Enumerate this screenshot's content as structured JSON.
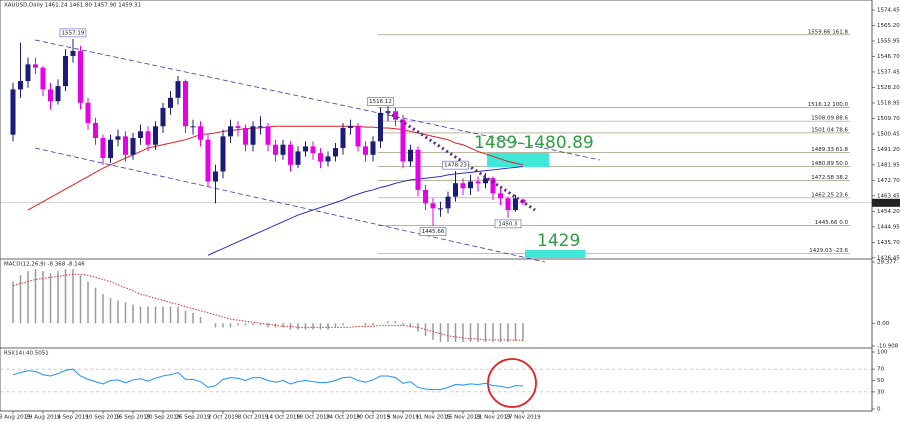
{
  "chart_data": {
    "type": "candlestick",
    "header": "XAUUSD,Daily  1461.24 1461.80 1457.90 1459.31",
    "categories": [
      "23 Aug 2019",
      null,
      null,
      null,
      "29 Aug 2019",
      null,
      null,
      null,
      "4 Sep 2019",
      null,
      null,
      null,
      "10 Sep 2019",
      null,
      null,
      null,
      "16 Sep 2019",
      null,
      null,
      null,
      "20 Sep 2019",
      null,
      null,
      null,
      "26 Sep 2019",
      null,
      null,
      null,
      "2 Oct 2019",
      null,
      null,
      null,
      "8 Oct 2019",
      null,
      null,
      null,
      "14 Oct 2019",
      null,
      null,
      null,
      "18 Oct 2019",
      null,
      null,
      null,
      "24 Oct 2019",
      null,
      null,
      null,
      "30 Oct 2019",
      null,
      null,
      null,
      "5 Nov 2019",
      null,
      null,
      null,
      "11 Nov 2019",
      null,
      null,
      null,
      "15 Nov 2019",
      null,
      null,
      null,
      "21 Nov 2019",
      null,
      null,
      null,
      "27 Nov 2019"
    ],
    "open": [
      1500,
      1527,
      1532,
      1542,
      1540,
      1527,
      1520,
      1529,
      1547,
      1550,
      1519,
      1507,
      1498,
      1486,
      1497,
      1499,
      1488,
      1498,
      1502,
      1494,
      1505,
      1516,
      1522,
      1532,
      1505,
      1505,
      1497,
      1472,
      1478,
      1499,
      1505,
      1504,
      1494,
      1505,
      1505,
      1494,
      1488,
      1494,
      1482,
      1490,
      1493,
      1489,
      1484,
      1487,
      1492,
      1504,
      1505,
      1493,
      1488,
      1496,
      1513,
      1514,
      1509,
      1484,
      1491,
      1467,
      1459,
      1456,
      1456,
      1463,
      1471,
      1468,
      1472,
      1471,
      1474,
      1465,
      1462,
      1455,
      1461.24
    ],
    "high": [
      1531,
      1555,
      1546,
      1546,
      1541,
      1531,
      1533,
      1551,
      1557.19,
      1553,
      1522,
      1510,
      1500,
      1500,
      1503,
      1502,
      1501,
      1506,
      1505,
      1508,
      1519,
      1526,
      1535,
      1533,
      1509,
      1508,
      1500,
      1482,
      1503,
      1509,
      1508,
      1506,
      1508,
      1511,
      1507,
      1497,
      1497,
      1496,
      1493,
      1496,
      1496,
      1492,
      1490,
      1495,
      1507,
      1509,
      1507,
      1496,
      1499,
      1516.12,
      1517,
      1516,
      1512,
      1494,
      1493,
      1470,
      1462,
      1460,
      1466,
      1478.23,
      1474,
      1476,
      1475,
      1477,
      1475,
      1468,
      1463,
      1464,
      1461.8
    ],
    "low": [
      1496,
      1522,
      1528,
      1536,
      1523,
      1515,
      1518,
      1526,
      1543,
      1515,
      1503,
      1494,
      1482,
      1483,
      1493,
      1484,
      1485,
      1494,
      1490,
      1491,
      1501,
      1512,
      1518,
      1501,
      1500,
      1493,
      1469,
      1459,
      1474,
      1495,
      1499,
      1490,
      1490,
      1500,
      1490,
      1484,
      1485,
      1478,
      1480,
      1487,
      1485,
      1480,
      1481,
      1484,
      1488,
      1500,
      1490,
      1484,
      1484,
      1492,
      1508,
      1505,
      1480,
      1481,
      1463,
      1455,
      1445.66,
      1451,
      1453,
      1460,
      1464,
      1464,
      1466,
      1468,
      1461,
      1458,
      1450.3,
      1454,
      1457.9
    ],
    "close": [
      1527,
      1532,
      1542,
      1540,
      1527,
      1520,
      1529,
      1547,
      1550,
      1519,
      1507,
      1498,
      1486,
      1497,
      1499,
      1488,
      1498,
      1502,
      1494,
      1505,
      1516,
      1522,
      1532,
      1505,
      1505,
      1497,
      1472,
      1478,
      1499,
      1505,
      1504,
      1494,
      1505,
      1505,
      1494,
      1488,
      1494,
      1482,
      1490,
      1493,
      1489,
      1484,
      1487,
      1492,
      1504,
      1505,
      1493,
      1488,
      1496,
      1513,
      1514,
      1509,
      1484,
      1491,
      1467,
      1459,
      1456,
      1456,
      1463,
      1471,
      1468,
      1472,
      1471,
      1474,
      1465,
      1462,
      1455,
      1462,
      1459.31
    ],
    "up_color": "#1c1c78",
    "down_color": "#e600e6",
    "ylim": [
      1426.35,
      1580.42
    ],
    "yticks": [
      1574.45,
      {
        "value": 1565.2,
        "label": "1565.20"
      },
      1555.95,
      {
        "value": 1546.7,
        "label": "1546.70"
      },
      1537.45,
      {
        "value": 1528.2,
        "label": "1528.20"
      },
      1518.95,
      {
        "value": 1509.7,
        "label": "1509.70"
      },
      1500.45,
      {
        "value": 1491.2,
        "label": "1491.20"
      },
      1481.95,
      {
        "value": 1472.7,
        "label": "1472.70"
      },
      1463.45,
      {
        "value": 1454.2,
        "label": "1454.20"
      },
      1444.95,
      {
        "value": 1435.7,
        "label": "1435.70"
      },
      1426.45
    ],
    "moving_averages": [
      {
        "color": "#e02020",
        "values": [
          null,
          null,
          1455,
          1457.5,
          1460,
          1462.5,
          1465,
          1467.5,
          1470,
          1472.5,
          1475,
          1477.5,
          1480,
          1482,
          1484,
          1486,
          1488,
          1490,
          1492,
          1493,
          1494,
          1495,
          1496,
          1497,
          1498.5,
          1500,
          1500.5,
          1501,
          1502,
          1502.5,
          1503,
          1503.5,
          1504,
          1504,
          1504.5,
          1505,
          1505,
          1505,
          1505,
          1505,
          1505,
          1505,
          1505,
          1505,
          1505,
          1505,
          1505,
          1504.5,
          1504.5,
          1504,
          1504,
          1503.5,
          1503,
          1502,
          1501,
          1500,
          1499,
          1498,
          1497,
          1495,
          1494,
          1492,
          1490,
          1488.5,
          1487,
          1485.5,
          1484,
          1483,
          1482
        ]
      },
      {
        "color": "#3030c0",
        "values": [
          null,
          null,
          null,
          null,
          null,
          null,
          null,
          null,
          null,
          null,
          null,
          null,
          null,
          null,
          null,
          null,
          null,
          null,
          null,
          null,
          null,
          null,
          null,
          null,
          null,
          null,
          1428,
          1430,
          1432,
          1434,
          1436,
          1438,
          1440,
          1442,
          1444,
          1446,
          1448,
          1450,
          1452,
          1453.5,
          1455,
          1456.5,
          1458,
          1459.5,
          1461,
          1463,
          1464.5,
          1466,
          1467,
          1468.5,
          1469.5,
          1471,
          1472,
          1473,
          1473.5,
          1474,
          1474.5,
          1475,
          1476,
          1476.5,
          1477,
          1477.5,
          1478,
          1478.5,
          1479,
          1479.5,
          1480,
          1480.5,
          1481
        ]
      }
    ],
    "fib_levels": [
      {
        "value": 1559.66,
        "label": "1559.66  161.8"
      },
      {
        "value": 1516.12,
        "label": "1516.12  100.0"
      },
      {
        "value": 1508.09,
        "label": "1508.09  88.6"
      },
      {
        "value": 1501.04,
        "label": "1501.04  78.6"
      },
      {
        "value": 1489.33,
        "label": "1489.33  61.8"
      },
      {
        "value": 1480.89,
        "label": "1480.89  50.0"
      },
      {
        "value": 1472.58,
        "label": "1472.58  38.2"
      },
      {
        "value": 1462.25,
        "label": "1462.25  23.6"
      },
      {
        "value": 1445.66,
        "label": "1445.66  0.0"
      },
      {
        "value": 1429.03,
        "label": "1429.03  -23.6"
      }
    ],
    "annotations": [
      "1489-1480.89",
      "1429"
    ],
    "macd": {
      "label": "MACD(12,26,9) -8.368 -8.146",
      "histogram_color": "#9a9a9a",
      "signal_color": "#e03030",
      "ylim": [
        -10.908,
        29.377
      ],
      "yticks": [
        29.377,
        {
          "value": 0,
          "label": "0.00"
        },
        -10.908
      ],
      "histogram": [
        20,
        23,
        25,
        26,
        25,
        24,
        25,
        26,
        26,
        23,
        20,
        17,
        14,
        12,
        11,
        10,
        9,
        8,
        8,
        8,
        8,
        8,
        8,
        6,
        5,
        3,
        0,
        -2,
        -2,
        -2,
        -1,
        -1,
        -1,
        -1,
        -2,
        -2,
        -2,
        -3,
        -3,
        -3,
        -3,
        -3,
        -3,
        -2,
        -1,
        0,
        0,
        -1,
        -1,
        0,
        1,
        1,
        -1,
        -2,
        -4,
        -6,
        -8,
        -9,
        -9,
        -9,
        -9,
        -9,
        -9,
        -9,
        -9,
        -9,
        -9,
        -8.5,
        -8.368
      ],
      "signal": [
        18,
        19,
        20,
        21,
        21.5,
        22,
        22.5,
        23,
        23.5,
        23.5,
        23,
        22,
        21,
        20,
        18.5,
        17,
        15.5,
        14,
        13,
        12,
        11,
        10,
        9,
        8,
        7,
        6,
        5,
        4,
        3,
        2,
        1.5,
        1,
        0.5,
        0,
        -0.5,
        -1,
        -1.5,
        -1.5,
        -2,
        -2,
        -2,
        -2,
        -2,
        -2,
        -2,
        -2,
        -1.5,
        -1.5,
        -1.5,
        -1,
        -1,
        -1,
        -1,
        -1.5,
        -2,
        -3,
        -4,
        -5,
        -6,
        -6.5,
        -7,
        -7.5,
        -7.5,
        -8,
        -8,
        -8,
        -8,
        -8.1,
        -8.146
      ]
    },
    "rsi": {
      "label": "RSI(14) 40.5051",
      "color": "#1e90ff",
      "ylim": [
        0,
        100
      ],
      "yticks": [
        100,
        70,
        50,
        30,
        0
      ],
      "values": [
        60,
        64,
        67,
        66,
        60,
        58,
        62,
        68,
        70,
        58,
        52,
        48,
        44,
        50,
        51,
        46,
        51,
        53,
        49,
        54,
        58,
        60,
        64,
        52,
        52,
        48,
        38,
        41,
        52,
        55,
        54,
        50,
        55,
        55,
        50,
        47,
        50,
        44,
        48,
        50,
        48,
        46,
        47,
        50,
        55,
        56,
        50,
        47,
        51,
        58,
        58,
        55,
        45,
        48,
        38,
        35,
        34,
        34,
        38,
        43,
        42,
        44,
        43,
        45,
        41,
        40,
        37,
        41,
        40.5051
      ]
    }
  }
}
